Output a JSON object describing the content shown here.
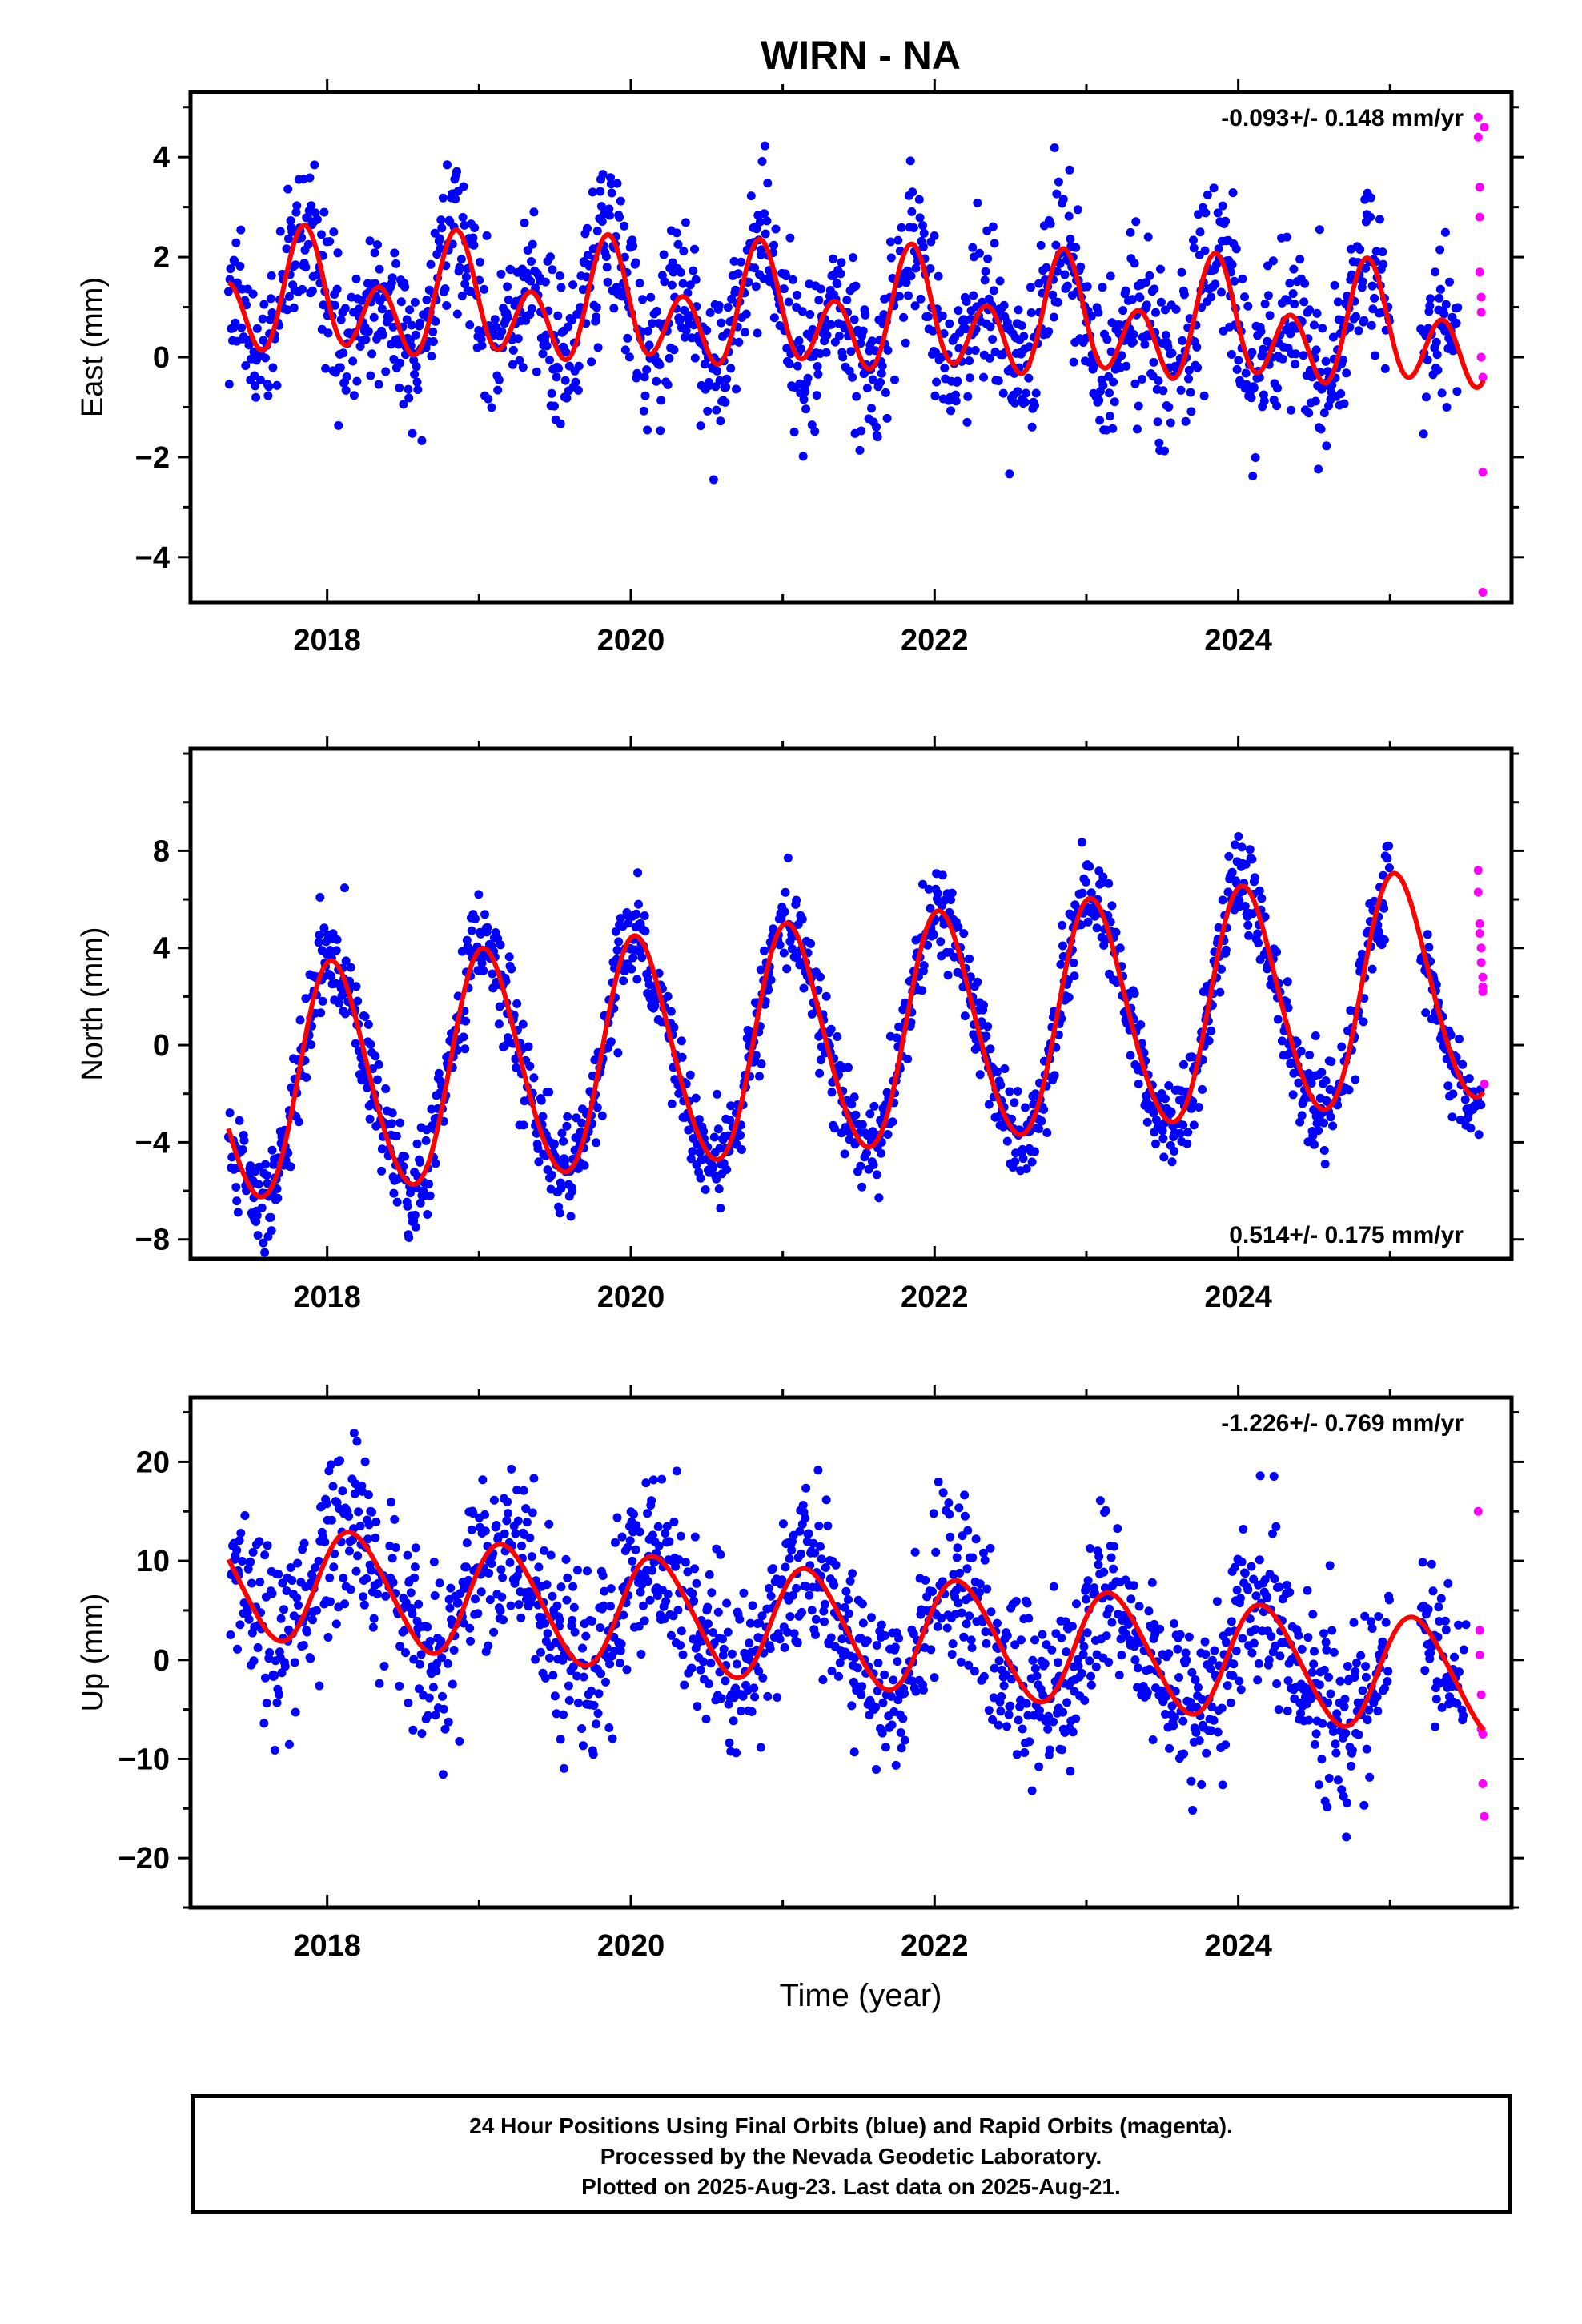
{
  "title": "WIRN - NA",
  "xlabel": "Time (year)",
  "footnote": [
    "24 Hour Positions Using Final Orbits (blue) and Rapid Orbits (magenta).",
    "Processed by the Nevada Geodetic Laboratory.",
    "Plotted on 2025-Aug-23. Last data on 2025-Aug-21."
  ],
  "colors": {
    "final": "#0000ff",
    "rapid": "#ff00ff",
    "model": "#ff0000"
  },
  "chart_data": [
    {
      "type": "scatter",
      "ylabel": "East (mm)",
      "rate_label": "-0.093+/- 0.148 mm/yr",
      "rate_position": "top-right",
      "xlim": [
        2017.1,
        2025.8
      ],
      "ylim": [
        -4.9,
        5.3
      ],
      "x_ticks": [
        2018,
        2020,
        2022,
        2024
      ],
      "y_ticks": [
        -4,
        -2,
        0,
        2,
        4
      ],
      "model": {
        "offset": 0.8,
        "trend": -0.093,
        "annual_amp": 0.6,
        "annual_phase": 2.4,
        "semiannual_amp": 0.9,
        "semiannual_phase": 3.5
      },
      "final_series": {
        "name": "Final Orbits",
        "x_start": 2017.35,
        "x_end": 2025.45,
        "spacing": 0.0045,
        "noise_sd": 0.8,
        "gaps": [
          [
            2025.0,
            2025.2
          ]
        ]
      },
      "rapid_series": {
        "name": "Rapid Orbits",
        "x": [
          2025.58,
          2025.58,
          2025.59,
          2025.59,
          2025.59,
          2025.6,
          2025.6,
          2025.6,
          2025.61,
          2025.61,
          2025.61,
          2025.62
        ],
        "y": [
          4.8,
          4.4,
          3.4,
          2.8,
          1.7,
          1.2,
          0.9,
          0.0,
          -0.4,
          -2.3,
          -4.7,
          4.6
        ]
      }
    },
    {
      "type": "scatter",
      "ylabel": "North (mm)",
      "rate_label": "0.514+/- 0.175 mm/yr",
      "rate_position": "bottom-right",
      "xlim": [
        2017.1,
        2025.8
      ],
      "ylim": [
        -8.8,
        12.2
      ],
      "x_ticks": [
        2018,
        2020,
        2022,
        2024
      ],
      "y_ticks": [
        -8,
        -4,
        0,
        4,
        8
      ],
      "model": {
        "offset": 0.3,
        "trend": 0.514,
        "annual_amp": 4.7,
        "annual_phase": 1.3,
        "semiannual_amp": 0.4,
        "semiannual_phase": 2.0
      },
      "final_series": {
        "name": "Final Orbits",
        "x_start": 2017.35,
        "x_end": 2025.6,
        "spacing": 0.0045,
        "noise_sd": 1.0,
        "gaps": [
          [
            2025.0,
            2025.2
          ]
        ]
      },
      "rapid_series": {
        "name": "Rapid Orbits",
        "x": [
          2025.58,
          2025.58,
          2025.59,
          2025.59,
          2025.6,
          2025.6,
          2025.61,
          2025.61,
          2025.61,
          2025.62
        ],
        "y": [
          7.2,
          6.3,
          5.0,
          4.6,
          4.0,
          3.4,
          2.8,
          2.4,
          2.2,
          -1.6
        ]
      }
    },
    {
      "type": "scatter",
      "ylabel": "Up (mm)",
      "rate_label": "-1.226+/- 0.769 mm/yr",
      "rate_position": "top-right",
      "xlim": [
        2017.1,
        2025.8
      ],
      "ylim": [
        -25,
        26.5
      ],
      "x_ticks": [
        2018,
        2020,
        2022,
        2024
      ],
      "y_ticks": [
        -20,
        -10,
        0,
        10,
        20
      ],
      "model": {
        "offset": 3.0,
        "trend": -1.226,
        "annual_amp": 5.7,
        "annual_phase": 0.5,
        "semiannual_amp": 0.5,
        "semiannual_phase": 1.0
      },
      "final_series": {
        "name": "Final Orbits",
        "x_start": 2017.35,
        "x_end": 2025.5,
        "spacing": 0.0045,
        "noise_sd": 4.5,
        "gaps": [
          [
            2025.0,
            2025.2
          ]
        ]
      },
      "rapid_series": {
        "name": "Rapid Orbits",
        "x": [
          2025.58,
          2025.59,
          2025.59,
          2025.6,
          2025.6,
          2025.61,
          2025.61,
          2025.62
        ],
        "y": [
          15.0,
          3.0,
          0.5,
          -3.5,
          -7.0,
          -7.5,
          -12.5,
          -15.8
        ]
      }
    }
  ]
}
